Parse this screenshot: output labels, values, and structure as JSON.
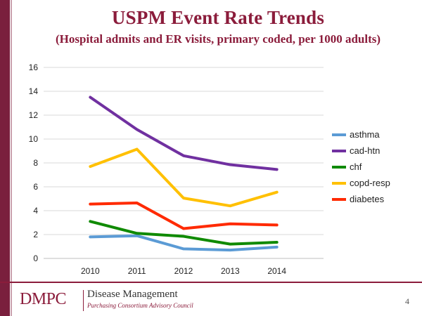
{
  "slide": {
    "title": "USPM Event Rate Trends",
    "subtitle": "(Hospital admits and ER visits, primary coded, per 1000 adults)",
    "page_number": "4"
  },
  "footer": {
    "logo_text": "DMPC",
    "org_name": "Disease Management",
    "org_subtitle": "Purchasing Consortium Advisory Council"
  },
  "colors": {
    "brand": "#8b1c3b",
    "sidebar": "#7a1f3d"
  },
  "chart_data": {
    "type": "line",
    "title": "USPM Event Rate Trends",
    "subtitle": "(Hospital admits and ER visits, primary coded, per 1000 adults)",
    "xlabel": "",
    "ylabel": "",
    "categories": [
      "2010",
      "2011",
      "2012",
      "2013",
      "2014"
    ],
    "ylim": [
      0,
      16
    ],
    "yticks": [
      0,
      2,
      4,
      6,
      8,
      10,
      12,
      14,
      16
    ],
    "grid": true,
    "legend_position": "right",
    "series": [
      {
        "name": "asthma",
        "color": "#5b9bd5",
        "values": [
          1.8,
          1.9,
          0.8,
          0.7,
          0.95
        ]
      },
      {
        "name": "cad-htn",
        "color": "#7030a0",
        "values": [
          13.5,
          10.8,
          8.6,
          7.85,
          7.45
        ]
      },
      {
        "name": "chf",
        "color": "#0f8a00",
        "values": [
          3.1,
          2.1,
          1.85,
          1.2,
          1.35
        ]
      },
      {
        "name": "copd-resp",
        "color": "#ffc000",
        "values": [
          7.7,
          9.15,
          5.05,
          4.4,
          5.55
        ]
      },
      {
        "name": "diabetes",
        "color": "#ff2a00",
        "values": [
          4.55,
          4.65,
          2.5,
          2.9,
          2.8
        ]
      }
    ]
  }
}
